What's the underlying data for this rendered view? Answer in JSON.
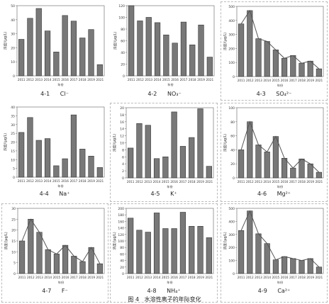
{
  "caption": {
    "number": "图 4",
    "text": "水溶性离子的年际变化"
  },
  "ylabel": "浓度/(μg/L)",
  "xlabel": "年份",
  "years": [
    "2011",
    "2012",
    "2013",
    "2014",
    "2015",
    "2016",
    "2017",
    "2018",
    "2019",
    "2021"
  ],
  "bar_color": "#787878",
  "line_color": "#555555",
  "chart_data": [
    {
      "type": "bar",
      "number": "4-1",
      "title": "Cl⁻",
      "ylim": [
        0,
        50
      ],
      "yticks": [
        0,
        10,
        20,
        30,
        40,
        50
      ],
      "categories": [
        "2011",
        "2012",
        "2013",
        "2014",
        "2015",
        "2016",
        "2017",
        "2018",
        "2019",
        "2021"
      ],
      "values": [
        26,
        41,
        48,
        32,
        17,
        43,
        39,
        27,
        33,
        8
      ],
      "trend_line": false
    },
    {
      "type": "bar",
      "number": "4-2",
      "title": "NO₃⁻",
      "ylim": [
        0,
        120
      ],
      "yticks": [
        0,
        20,
        40,
        60,
        80,
        100,
        120
      ],
      "categories": [
        "2011",
        "2012",
        "2013",
        "2014",
        "2015",
        "2016",
        "2017",
        "2018",
        "2019",
        "2021"
      ],
      "values": [
        120,
        94,
        100,
        91,
        70,
        56,
        92,
        53,
        87,
        32
      ],
      "trend_line": false
    },
    {
      "type": "bar",
      "number": "4-3",
      "title": "SO₄²⁻",
      "ylim": [
        0,
        500
      ],
      "yticks": [
        0,
        100,
        200,
        300,
        400,
        500
      ],
      "categories": [
        "2011",
        "2012",
        "2013",
        "2014",
        "2015",
        "2016",
        "2017",
        "2018",
        "2019",
        "2021"
      ],
      "values": [
        375,
        470,
        270,
        250,
        190,
        130,
        150,
        95,
        110,
        55
      ],
      "trend_line": true
    },
    {
      "type": "bar",
      "number": "4-4",
      "title": "Na⁺",
      "ylim": [
        0,
        40
      ],
      "yticks": [
        0,
        5,
        10,
        15,
        20,
        25,
        30,
        35,
        40
      ],
      "categories": [
        "2011",
        "2012",
        "2013",
        "2014",
        "2015",
        "2016",
        "2017",
        "2018",
        "2019",
        "2021"
      ],
      "values": [
        25.5,
        34,
        21,
        22,
        6.5,
        10.5,
        35.5,
        16,
        12,
        5.5
      ],
      "trend_line": false
    },
    {
      "type": "bar",
      "number": "4-5",
      "title": "K⁺",
      "ylim": [
        0,
        20
      ],
      "yticks": [
        0,
        2,
        4,
        6,
        8,
        10,
        12,
        14,
        16,
        18,
        20
      ],
      "categories": [
        "2011",
        "2012",
        "2013",
        "2014",
        "2015",
        "2016",
        "2017",
        "2018",
        "2019",
        "2021"
      ],
      "values": [
        8.5,
        15.5,
        15,
        5.5,
        6,
        18.8,
        9,
        11.5,
        19.7,
        3.3
      ],
      "trend_line": false
    },
    {
      "type": "bar",
      "number": "4-6",
      "title": "Mg²⁺",
      "ylim": [
        0,
        100
      ],
      "yticks": [
        0,
        20,
        40,
        60,
        80,
        100
      ],
      "categories": [
        "2011",
        "2012",
        "2013",
        "2014",
        "2015",
        "2016",
        "2017",
        "2018",
        "2019",
        "2021"
      ],
      "values": [
        40,
        80,
        47,
        37,
        59,
        28,
        14,
        27,
        20,
        8
      ],
      "trend_line": true
    },
    {
      "type": "bar",
      "number": "4-7",
      "title": "F⁻",
      "ylim": [
        0,
        30
      ],
      "yticks": [
        0,
        5,
        10,
        15,
        20,
        25,
        30
      ],
      "categories": [
        "2011",
        "2012",
        "2013",
        "2014",
        "2015",
        "2016",
        "2017",
        "2018",
        "2019",
        "2021"
      ],
      "values": [
        15,
        25,
        19,
        11,
        9,
        13,
        8,
        5.5,
        12,
        4.5
      ],
      "trend_line": true
    },
    {
      "type": "bar",
      "number": "4-8",
      "title": "NH₄⁺",
      "ylim": [
        0,
        200
      ],
      "yticks": [
        0,
        20,
        40,
        60,
        80,
        100,
        120,
        140,
        160,
        180,
        200
      ],
      "categories": [
        "2011",
        "2012",
        "2013",
        "2014",
        "2015",
        "2016",
        "2017",
        "2018",
        "2019",
        "2021"
      ],
      "values": [
        170,
        133,
        127,
        186,
        138,
        138,
        188,
        145,
        145,
        110
      ],
      "trend_line": false
    },
    {
      "type": "bar",
      "number": "4-9",
      "title": "Ca²⁺",
      "ylim": [
        0,
        500
      ],
      "yticks": [
        0,
        100,
        200,
        300,
        400,
        500
      ],
      "categories": [
        "2011",
        "2012",
        "2013",
        "2014",
        "2015",
        "2016",
        "2017",
        "2018",
        "2019",
        "2021"
      ],
      "values": [
        330,
        480,
        305,
        230,
        105,
        130,
        115,
        100,
        115,
        50
      ],
      "trend_line": true
    }
  ]
}
